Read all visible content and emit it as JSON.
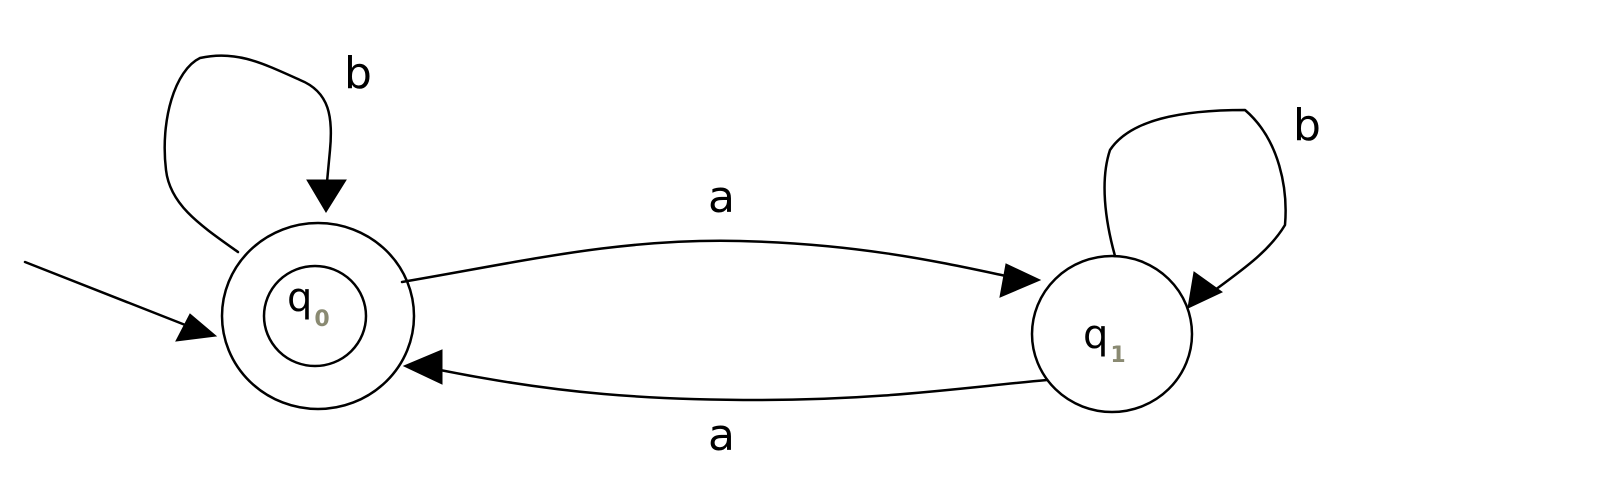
{
  "states": [
    {
      "id": "q0",
      "name": "q",
      "subscript": "0",
      "start": true,
      "accepting": true
    },
    {
      "id": "q1",
      "name": "q",
      "subscript": "1",
      "start": false,
      "accepting": false
    }
  ],
  "transitions": [
    {
      "from": "q0",
      "to": "q0",
      "symbol": "b"
    },
    {
      "from": "q0",
      "to": "q1",
      "symbol": "a"
    },
    {
      "from": "q1",
      "to": "q0",
      "symbol": "a"
    },
    {
      "from": "q1",
      "to": "q1",
      "symbol": "b"
    }
  ],
  "colors": {
    "stroke": "#000000",
    "subscript": "#8a8a72"
  }
}
